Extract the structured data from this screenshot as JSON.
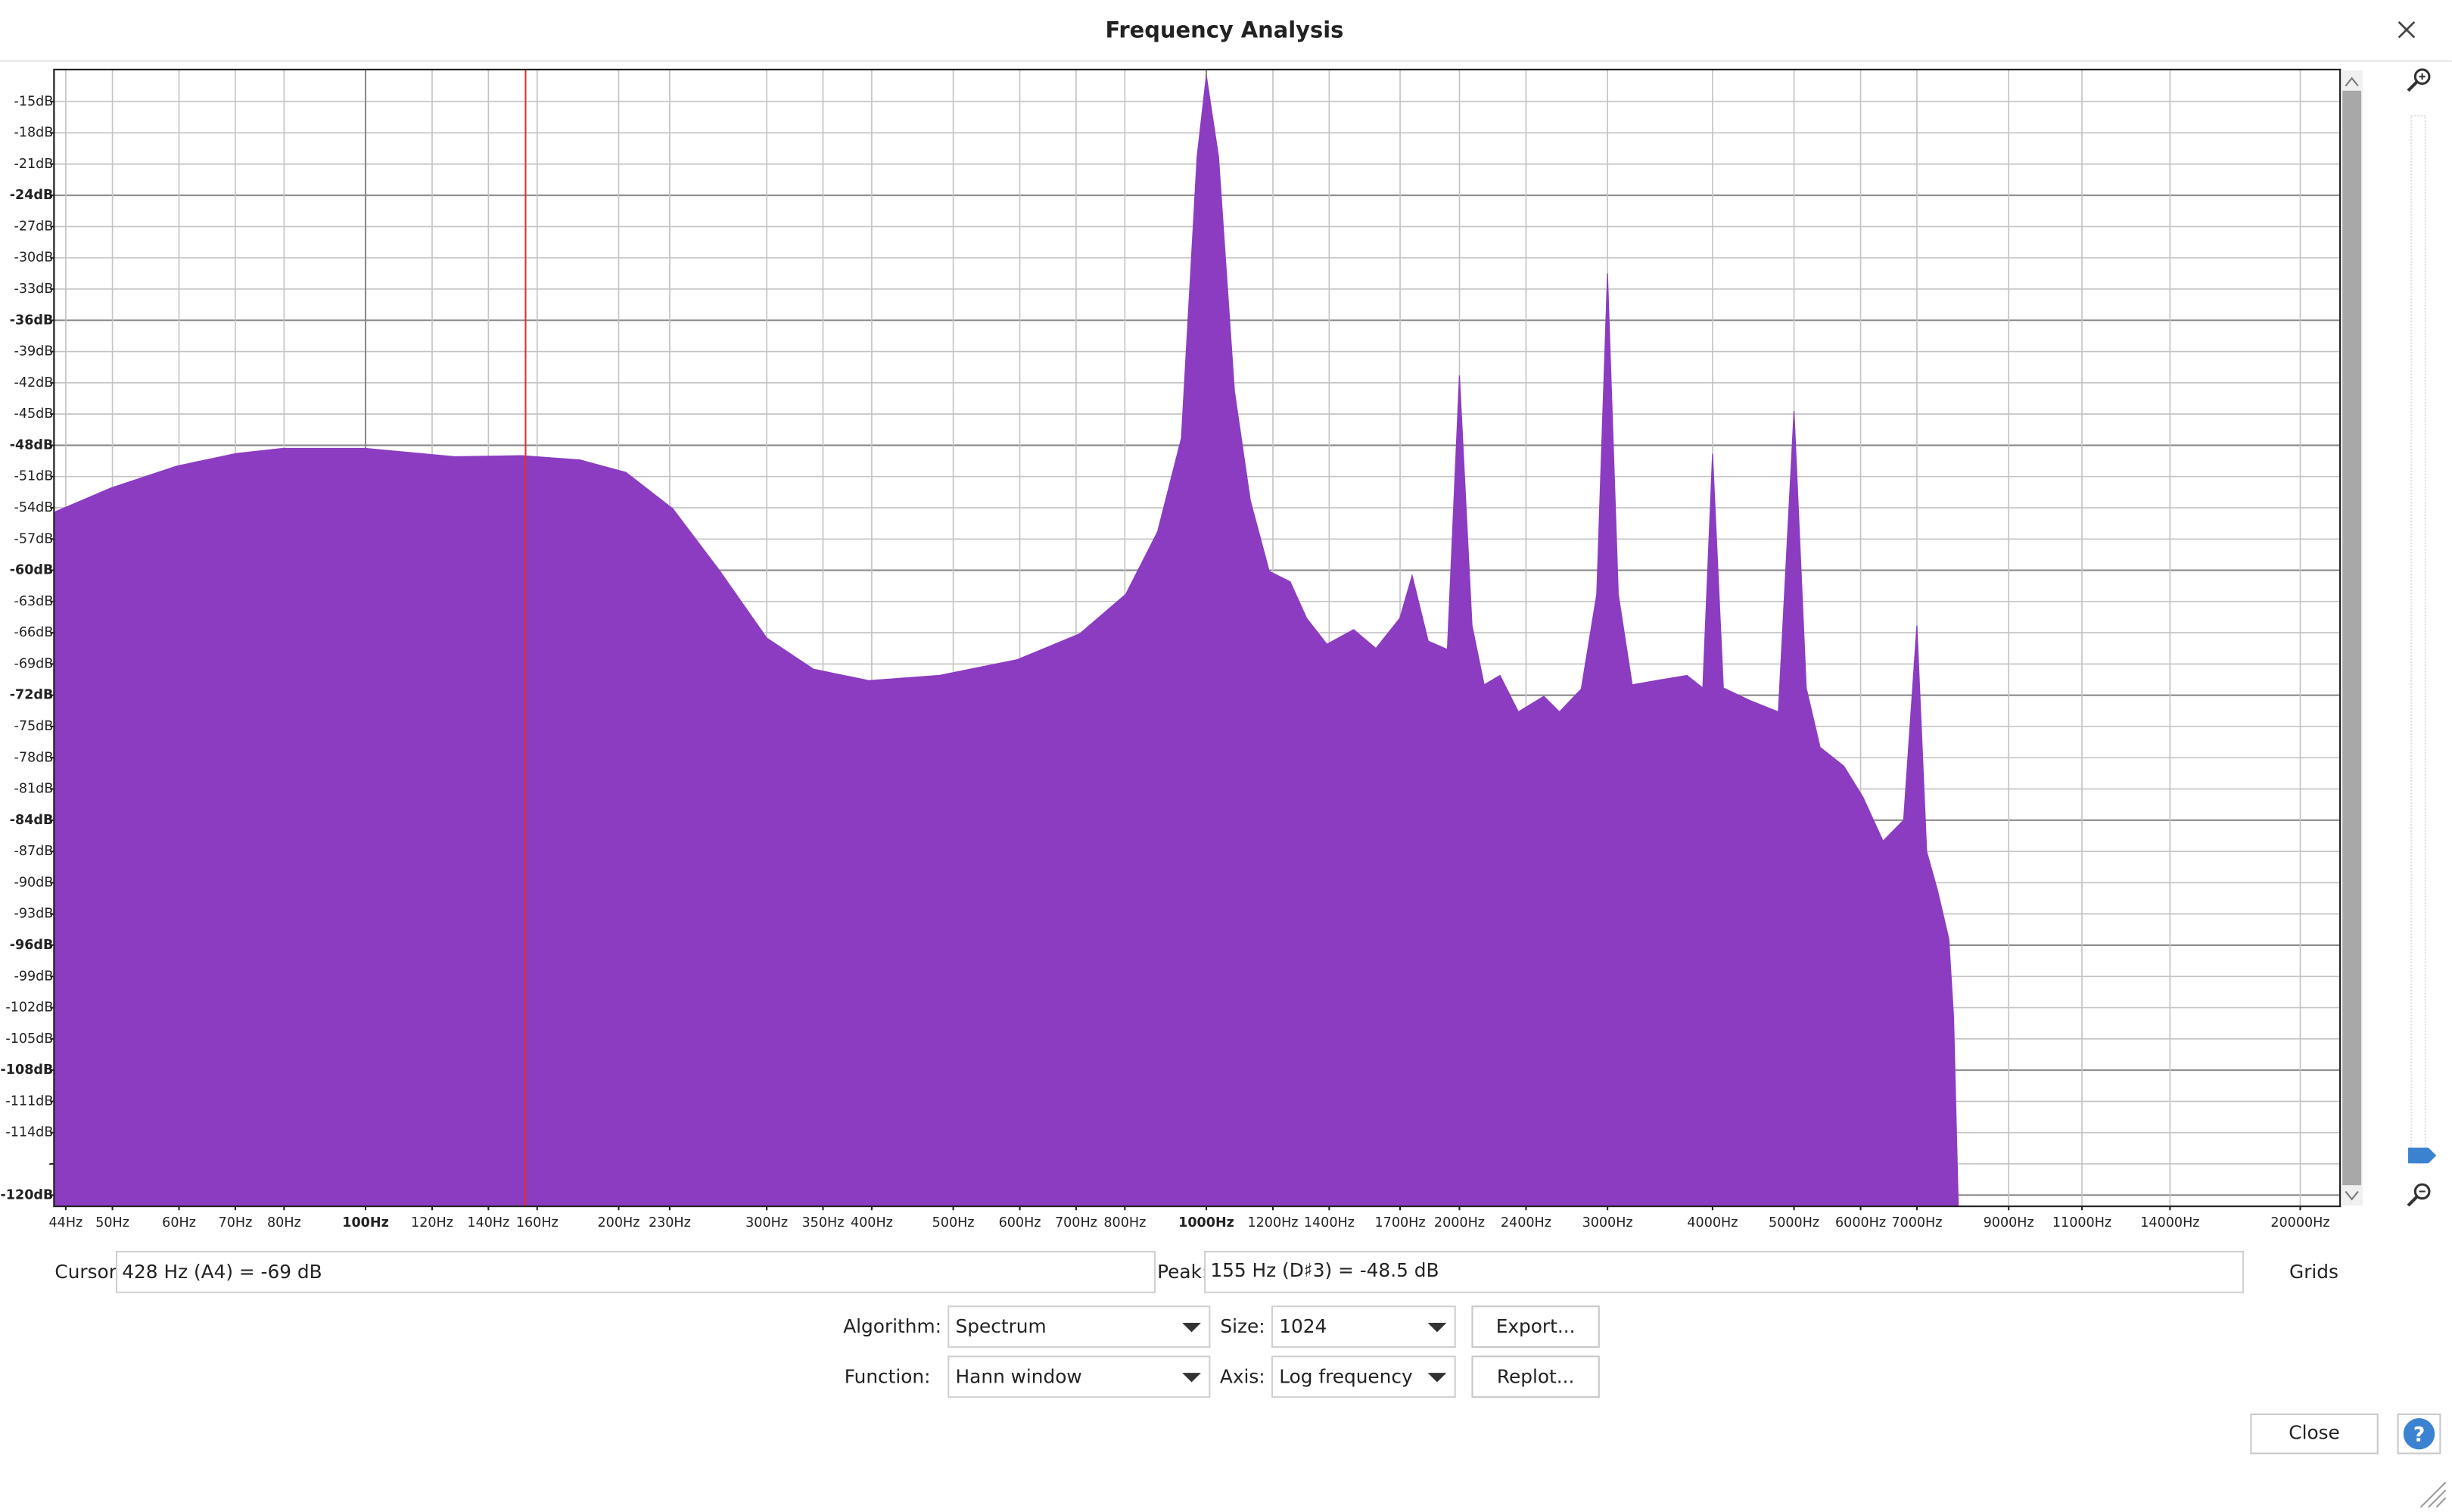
{
  "window": {
    "title": "Frequency Analysis"
  },
  "chart_data": {
    "type": "area",
    "color": "#8b3cc1",
    "log_x": true,
    "grid": true,
    "x": [
      42.7,
      49.8,
      59.6,
      70.1,
      79.7,
      100,
      127.6,
      153.4,
      179.7,
      204,
      232,
      264,
      300,
      341,
      397,
      481,
      595,
      707,
      802,
      875,
      934,
      975,
      1000,
      1034,
      1080,
      1128,
      1188,
      1258,
      1316,
      1391,
      1497,
      1591,
      1699,
      1757,
      1836,
      1935,
      2000,
      2070,
      2140,
      2235,
      2350,
      2520,
      2630,
      2792,
      2913,
      3000,
      3090,
      3210,
      3420,
      3730,
      3895,
      4000,
      4120,
      4430,
      4790,
      5000,
      5170,
      5370,
      5730,
      6040,
      6380,
      6750,
      7000,
      7190,
      7410,
      7640,
      7740,
      7840
    ],
    "values": [
      -54.4,
      -52.1,
      -50.0,
      -48.8,
      -48.3,
      -48.3,
      -49.1,
      -49.0,
      -49.4,
      -50.6,
      -54.1,
      -60.1,
      -66.5,
      -69.5,
      -70.6,
      -70.1,
      -68.6,
      -66.1,
      -62.3,
      -56.3,
      -47.3,
      -20.3,
      -12.5,
      -20.3,
      -42.8,
      -53.3,
      -60.1,
      -61.1,
      -64.6,
      -67.1,
      -65.7,
      -67.5,
      -64.6,
      -60.5,
      -66.8,
      -67.6,
      -41.3,
      -65.3,
      -71.0,
      -70.1,
      -73.6,
      -72.1,
      -73.6,
      -71.4,
      -62.3,
      -31.5,
      -62.3,
      -71.0,
      -70.6,
      -70.1,
      -71.3,
      -48.8,
      -71.3,
      -72.5,
      -73.6,
      -44.7,
      -71.3,
      -77.0,
      -78.8,
      -81.8,
      -86.0,
      -84.0,
      -65.3,
      -87.0,
      -90.8,
      -95.4,
      -102.9,
      -121
    ],
    "peak_marker_x": 155,
    "xlim": [
      42.7,
      22260
    ],
    "ylim": [
      -121,
      -12
    ],
    "xticks": [
      {
        "value": 44,
        "label": "44Hz"
      },
      {
        "value": 50,
        "label": "50Hz"
      },
      {
        "value": 60,
        "label": "60Hz"
      },
      {
        "value": 70,
        "label": "70Hz"
      },
      {
        "value": 80,
        "label": "80Hz"
      },
      {
        "value": 100,
        "label": "100Hz"
      },
      {
        "value": 120,
        "label": "120Hz"
      },
      {
        "value": 140,
        "label": "140Hz"
      },
      {
        "value": 160,
        "label": "160Hz"
      },
      {
        "value": 200,
        "label": "200Hz"
      },
      {
        "value": 230,
        "label": "230Hz"
      },
      {
        "value": 300,
        "label": "300Hz"
      },
      {
        "value": 350,
        "label": "350Hz"
      },
      {
        "value": 400,
        "label": "400Hz"
      },
      {
        "value": 500,
        "label": "500Hz"
      },
      {
        "value": 600,
        "label": "600Hz"
      },
      {
        "value": 700,
        "label": "700Hz"
      },
      {
        "value": 800,
        "label": "800Hz"
      },
      {
        "value": 1000,
        "label": "1000Hz"
      },
      {
        "value": 1200,
        "label": "1200Hz"
      },
      {
        "value": 1400,
        "label": "1400Hz"
      },
      {
        "value": 1700,
        "label": "1700Hz"
      },
      {
        "value": 2000,
        "label": "2000Hz"
      },
      {
        "value": 2400,
        "label": "2400Hz"
      },
      {
        "value": 3000,
        "label": "3000Hz"
      },
      {
        "value": 4000,
        "label": "4000Hz"
      },
      {
        "value": 5000,
        "label": "5000Hz"
      },
      {
        "value": 6000,
        "label": "6000Hz"
      },
      {
        "value": 7000,
        "label": "7000Hz"
      },
      {
        "value": 9000,
        "label": "9000Hz"
      },
      {
        "value": 11000,
        "label": "11000Hz"
      },
      {
        "value": 14000,
        "label": "14000Hz"
      },
      {
        "value": 20000,
        "label": "20000Hz"
      }
    ],
    "yticks": [
      {
        "value": -15,
        "label": "-15dB"
      },
      {
        "value": -18,
        "label": "-18dB"
      },
      {
        "value": -21,
        "label": "-21dB"
      },
      {
        "value": -24,
        "label": "-24dB"
      },
      {
        "value": -27,
        "label": "-27dB"
      },
      {
        "value": -30,
        "label": "-30dB"
      },
      {
        "value": -33,
        "label": "-33dB"
      },
      {
        "value": -36,
        "label": "-36dB"
      },
      {
        "value": -39,
        "label": "-39dB"
      },
      {
        "value": -42,
        "label": "-42dB"
      },
      {
        "value": -45,
        "label": "-45dB"
      },
      {
        "value": -48,
        "label": "-48dB"
      },
      {
        "value": -51,
        "label": "-51dB"
      },
      {
        "value": -54,
        "label": "-54dB"
      },
      {
        "value": -57,
        "label": "-57dB"
      },
      {
        "value": -60,
        "label": "-60dB"
      },
      {
        "value": -63,
        "label": "-63dB"
      },
      {
        "value": -66,
        "label": "-66dB"
      },
      {
        "value": -69,
        "label": "-69dB"
      },
      {
        "value": -72,
        "label": "-72dB"
      },
      {
        "value": -75,
        "label": "-75dB"
      },
      {
        "value": -78,
        "label": "-78dB"
      },
      {
        "value": -81,
        "label": "-81dB"
      },
      {
        "value": -84,
        "label": "-84dB"
      },
      {
        "value": -87,
        "label": "-87dB"
      },
      {
        "value": -90,
        "label": "-90dB"
      },
      {
        "value": -93,
        "label": "-93dB"
      },
      {
        "value": -96,
        "label": "-96dB"
      },
      {
        "value": -99,
        "label": "-99dB"
      },
      {
        "value": -102,
        "label": "-102dB"
      },
      {
        "value": -105,
        "label": "-105dB"
      },
      {
        "value": -108,
        "label": "-108dB"
      },
      {
        "value": -111,
        "label": "-111dB"
      },
      {
        "value": -114,
        "label": "-114dB"
      },
      {
        "value": -117,
        "label": "-"
      },
      {
        "value": -120,
        "label": "-120dB"
      }
    ]
  },
  "status": {
    "cursor_label": "Cursor:",
    "cursor_value": "428 Hz (A4) = -69 dB",
    "peak_label": "Peak:",
    "peak_value": "155 Hz (D♯3) = -48.5 dB",
    "grids": "Grids"
  },
  "controls": {
    "algorithm_label": "Algorithm:",
    "algorithm": "Spectrum",
    "size_label": "Size:",
    "size": "1024",
    "export": "Export...",
    "function_label": "Function:",
    "function": "Hann window",
    "axis_label": "Axis:",
    "axis": "Log frequency",
    "replot": "Replot..."
  },
  "footer": {
    "close": "Close",
    "help": "?"
  }
}
